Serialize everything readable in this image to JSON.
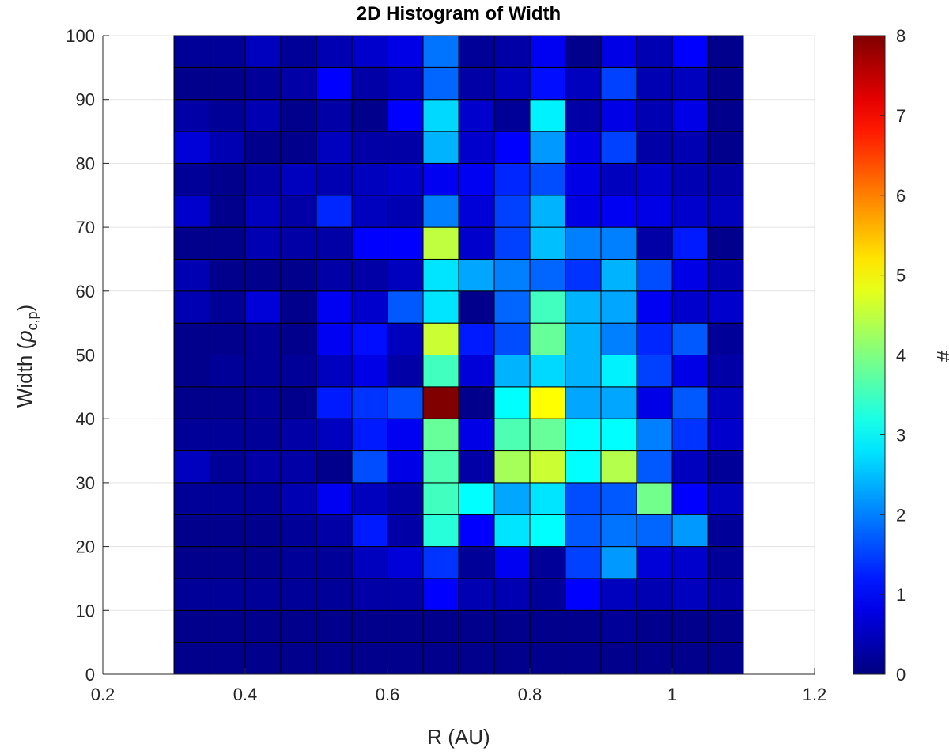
{
  "chart_data": {
    "type": "heatmap",
    "title": "2D Histogram of Width",
    "xlabel": "R (AU)",
    "ylabel_main": "Width (",
    "ylabel_symbol": "ρ",
    "ylabel_sub": "c,p",
    "ylabel_close": ")",
    "colorbar_label": "#",
    "xlim": [
      0.2,
      1.2
    ],
    "ylim": [
      0,
      100
    ],
    "clim": [
      0,
      8
    ],
    "colormap": "jet",
    "grid": true,
    "x_ticks": [
      "0.2",
      "0.4",
      "0.6",
      "0.8",
      "1",
      "1.2"
    ],
    "y_ticks": [
      "0",
      "10",
      "20",
      "30",
      "40",
      "50",
      "60",
      "70",
      "80",
      "90",
      "100"
    ],
    "colorbar_ticks": [
      "0",
      "1",
      "2",
      "3",
      "4",
      "5",
      "6",
      "7",
      "8"
    ],
    "x_bin_edges": [
      0.3,
      0.35,
      0.4,
      0.45,
      0.5,
      0.55,
      0.6,
      0.65,
      0.7,
      0.75,
      0.8,
      0.85,
      0.9,
      0.95,
      1.0,
      1.05,
      1.1
    ],
    "y_bin_edges": [
      0,
      5,
      10,
      15,
      20,
      25,
      30,
      35,
      40,
      45,
      50,
      55,
      60,
      65,
      70,
      75,
      80,
      85,
      90,
      95,
      100
    ],
    "counts": [
      [
        0.1,
        0.1,
        0.1,
        0.1,
        0.1,
        0.1,
        0.1,
        0.1,
        0.1,
        0.1,
        0.1,
        0.1,
        0.1,
        0.1,
        0.1,
        0.1
      ],
      [
        0.1,
        0.1,
        0.1,
        0.1,
        0.1,
        0.1,
        0.1,
        0.1,
        0.1,
        0.1,
        0.1,
        0.1,
        0.2,
        0.1,
        0.1,
        0.1
      ],
      [
        0.2,
        0.2,
        0.2,
        0.2,
        0.2,
        0.3,
        0.3,
        1.0,
        0.4,
        0.4,
        0.2,
        1.0,
        0.5,
        0.4,
        0.5,
        0.3
      ],
      [
        0.1,
        0.1,
        0.1,
        0.2,
        0.2,
        0.5,
        0.7,
        1.4,
        0.2,
        0.9,
        0.2,
        1.5,
        2.2,
        0.7,
        0.6,
        0.2
      ],
      [
        0.1,
        0.1,
        0.1,
        0.2,
        0.3,
        1.2,
        0.3,
        3.3,
        1.0,
        2.8,
        3.0,
        1.7,
        1.9,
        1.8,
        2.2,
        0.2
      ],
      [
        0.2,
        0.2,
        0.2,
        0.4,
        0.9,
        0.5,
        0.3,
        3.5,
        3.0,
        2.3,
        2.8,
        1.6,
        1.7,
        3.9,
        1.0,
        0.5
      ],
      [
        0.5,
        0.2,
        0.3,
        0.3,
        0.1,
        1.6,
        0.8,
        3.6,
        0.3,
        4.3,
        4.6,
        3.0,
        4.4,
        1.7,
        0.5,
        0.2
      ],
      [
        0.2,
        0.2,
        0.2,
        0.3,
        0.5,
        1.2,
        0.9,
        3.8,
        0.8,
        3.6,
        3.8,
        3.0,
        3.0,
        2.0,
        1.4,
        0.6
      ],
      [
        0.1,
        0.1,
        0.2,
        0.1,
        1.2,
        1.4,
        1.6,
        8.0,
        0.1,
        3.0,
        5.0,
        2.3,
        2.3,
        0.8,
        1.7,
        0.5
      ],
      [
        0.1,
        0.2,
        0.2,
        0.2,
        0.5,
        0.8,
        0.3,
        3.5,
        0.7,
        2.4,
        2.7,
        2.4,
        2.9,
        1.5,
        0.8,
        0.3
      ],
      [
        0.1,
        0.1,
        0.2,
        0.1,
        0.9,
        1.1,
        0.5,
        4.6,
        1.2,
        1.6,
        3.8,
        2.4,
        2.0,
        1.3,
        1.7,
        0.2
      ],
      [
        0.4,
        0.2,
        0.7,
        0.1,
        0.9,
        0.6,
        1.7,
        2.8,
        0.1,
        1.8,
        3.5,
        2.4,
        2.3,
        0.9,
        0.6,
        0.6
      ],
      [
        0.4,
        0.1,
        0.1,
        0.1,
        0.3,
        0.3,
        0.5,
        2.8,
        2.3,
        2.0,
        1.8,
        1.4,
        2.4,
        1.6,
        0.8,
        0.4
      ],
      [
        0.1,
        0.1,
        0.4,
        0.3,
        0.3,
        1.0,
        1.0,
        4.5,
        0.6,
        1.5,
        2.5,
        2.0,
        2.0,
        0.3,
        1.2,
        0.1
      ],
      [
        0.6,
        0.1,
        0.5,
        0.3,
        1.3,
        0.5,
        0.4,
        2.0,
        0.7,
        1.5,
        2.4,
        0.8,
        0.9,
        0.8,
        0.6,
        0.5
      ],
      [
        0.2,
        0.1,
        0.3,
        0.5,
        0.4,
        0.5,
        0.6,
        0.9,
        0.9,
        1.3,
        1.6,
        0.8,
        0.5,
        0.6,
        0.4,
        0.3
      ],
      [
        0.7,
        0.4,
        0.1,
        0.1,
        0.5,
        0.3,
        0.3,
        2.4,
        0.6,
        1.0,
        2.2,
        0.8,
        1.5,
        0.3,
        0.4,
        0.1
      ],
      [
        0.3,
        0.2,
        0.4,
        0.1,
        0.3,
        0.1,
        1.0,
        2.7,
        0.6,
        0.2,
        2.9,
        0.3,
        0.8,
        0.4,
        0.8,
        0.1
      ],
      [
        0.1,
        0.1,
        0.2,
        0.3,
        1.0,
        0.3,
        0.5,
        1.8,
        0.3,
        0.5,
        1.1,
        0.5,
        1.5,
        0.4,
        0.5,
        0.1
      ],
      [
        0.2,
        0.2,
        0.5,
        0.2,
        0.4,
        0.6,
        0.8,
        1.9,
        0.2,
        0.3,
        0.9,
        0.1,
        0.8,
        0.4,
        1.0,
        0.1
      ]
    ]
  }
}
